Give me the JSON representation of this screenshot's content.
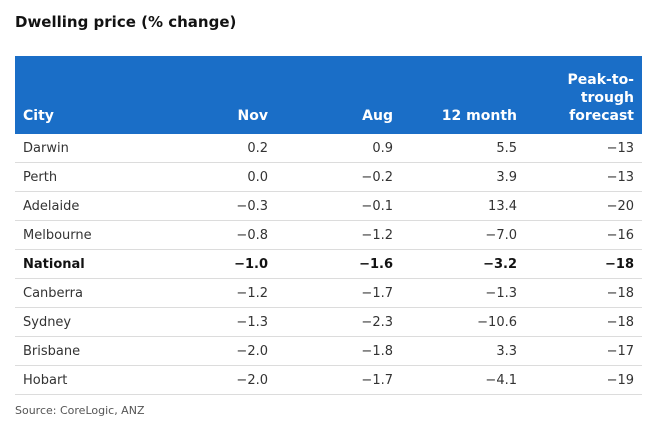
{
  "title": "Dwelling price (% change)",
  "source": "Source: CoreLogic, ANZ",
  "chart_data": {
    "type": "table",
    "title": "Dwelling price (% change)",
    "columns": [
      "City",
      "Nov",
      "Aug",
      "12 month",
      "Peak-to-trough forecast"
    ],
    "header_lines": {
      "peak": [
        "Peak-to-",
        "trough",
        "forecast"
      ]
    },
    "rows": [
      {
        "city": "Darwin",
        "nov": "0.2",
        "aug": "0.9",
        "m12": "5.5",
        "peak": "−13",
        "bold": false
      },
      {
        "city": "Perth",
        "nov": "0.0",
        "aug": "−0.2",
        "m12": "3.9",
        "peak": "−13",
        "bold": false
      },
      {
        "city": "Adelaide",
        "nov": "−0.3",
        "aug": "−0.1",
        "m12": "13.4",
        "peak": "−20",
        "bold": false
      },
      {
        "city": "Melbourne",
        "nov": "−0.8",
        "aug": "−1.2",
        "m12": "−7.0",
        "peak": "−16",
        "bold": false
      },
      {
        "city": "National",
        "nov": "−1.0",
        "aug": "−1.6",
        "m12": "−3.2",
        "peak": "−18",
        "bold": true
      },
      {
        "city": "Canberra",
        "nov": "−1.2",
        "aug": "−1.7",
        "m12": "−1.3",
        "peak": "−18",
        "bold": false
      },
      {
        "city": "Sydney",
        "nov": "−1.3",
        "aug": "−2.3",
        "m12": "−10.6",
        "peak": "−18",
        "bold": false
      },
      {
        "city": "Brisbane",
        "nov": "−2.0",
        "aug": "−1.8",
        "m12": "3.3",
        "peak": "−17",
        "bold": false
      },
      {
        "city": "Hobart",
        "nov": "−2.0",
        "aug": "−1.7",
        "m12": "−4.1",
        "peak": "−19",
        "bold": false
      }
    ],
    "header_color": "#1a6ec7"
  }
}
